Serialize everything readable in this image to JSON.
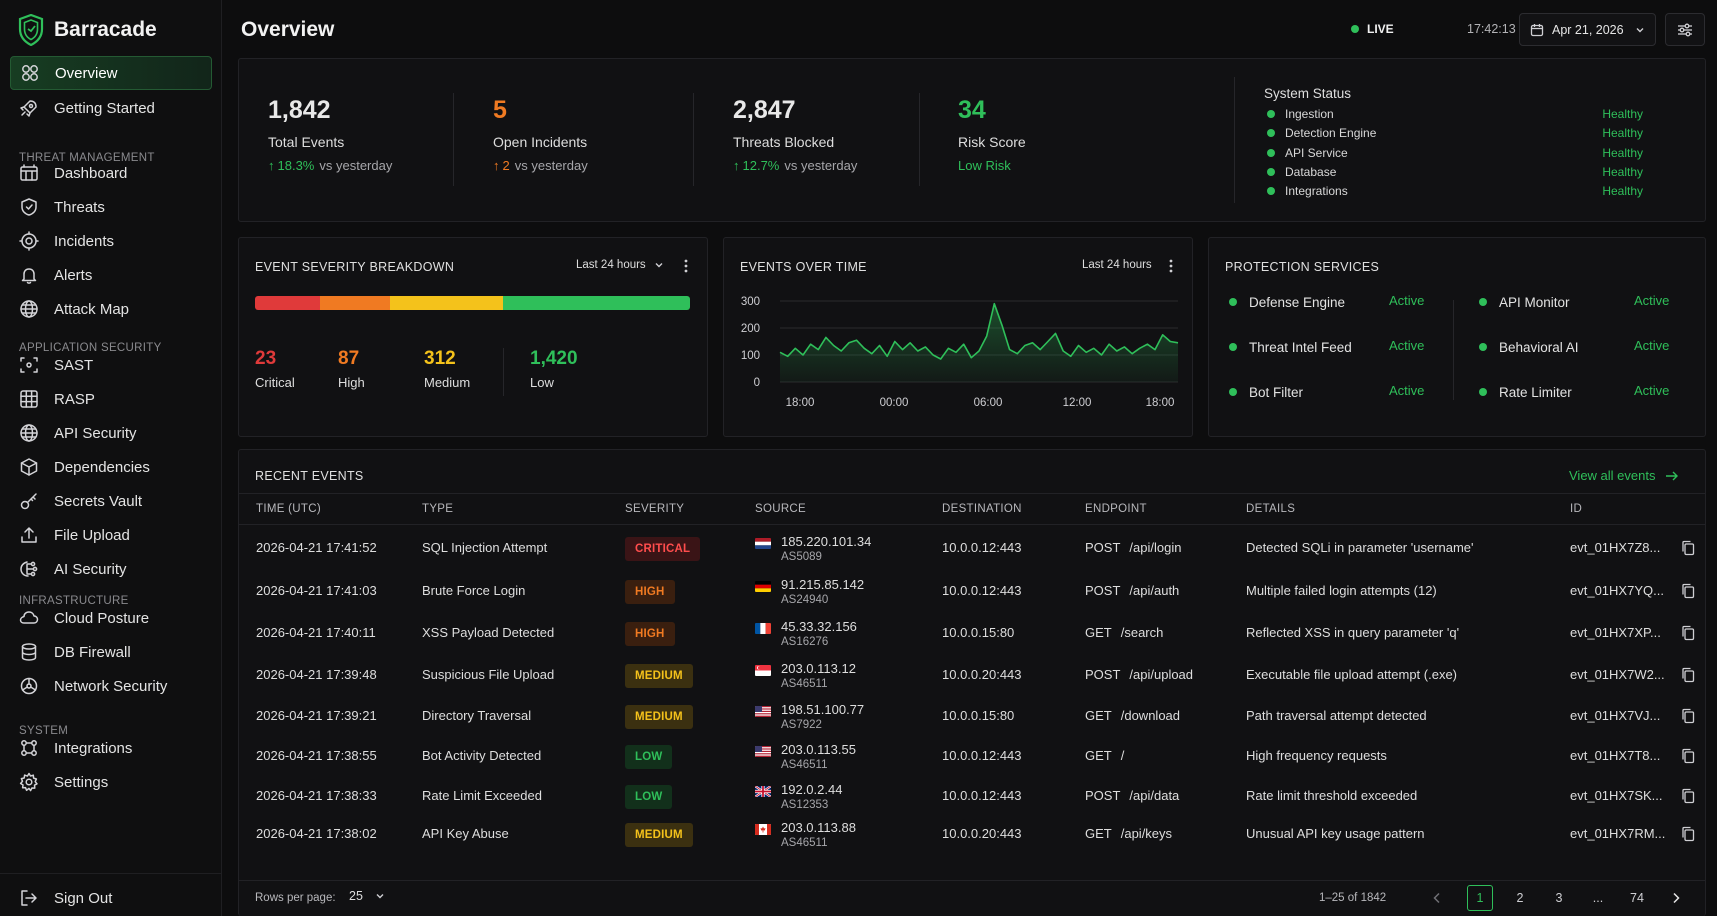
{
  "app": {
    "name": "Barracade"
  },
  "colors": {
    "accent": "#2fbf5a",
    "critical": "#e03a3a",
    "high": "#f07a22",
    "medium": "#f4c21b",
    "low": "#2fbf5a"
  },
  "sidebar": {
    "top": [
      {
        "label": "Overview",
        "icon": "grid-icon",
        "active": true
      },
      {
        "label": "Getting Started",
        "icon": "rocket-icon"
      }
    ],
    "sections": [
      {
        "label": "THREAT MANAGEMENT",
        "items": [
          {
            "label": "Dashboard",
            "icon": "dashboard-icon"
          },
          {
            "label": "Threats",
            "icon": "shield-icon"
          },
          {
            "label": "Incidents",
            "icon": "incident-icon"
          },
          {
            "label": "Alerts",
            "icon": "bell-icon"
          },
          {
            "label": "Attack Map",
            "icon": "globe-icon"
          }
        ]
      },
      {
        "label": "APPLICATION SECURITY",
        "items": [
          {
            "label": "SAST",
            "icon": "scan-icon"
          },
          {
            "label": "RASP",
            "icon": "grid-box-icon"
          },
          {
            "label": "API Security",
            "icon": "globe-icon"
          },
          {
            "label": "Dependencies",
            "icon": "package-icon"
          },
          {
            "label": "Secrets Vault",
            "icon": "key-icon"
          },
          {
            "label": "File Upload",
            "icon": "upload-icon"
          },
          {
            "label": "AI Security",
            "icon": "ai-icon"
          }
        ]
      },
      {
        "label": "INFRASTRUCTURE",
        "items": [
          {
            "label": "Cloud Posture",
            "icon": "cloud-icon"
          },
          {
            "label": "DB Firewall",
            "icon": "database-icon"
          },
          {
            "label": "Network Security",
            "icon": "network-icon"
          }
        ]
      },
      {
        "label": "SYSTEM",
        "items": [
          {
            "label": "Integrations",
            "icon": "integrations-icon"
          },
          {
            "label": "Settings",
            "icon": "gear-icon"
          }
        ]
      }
    ],
    "sign_out": "Sign Out"
  },
  "header": {
    "title": "Overview",
    "live": "LIVE",
    "time": "17:42:13 UTC",
    "date": "Apr 21, 2026"
  },
  "kpis": [
    {
      "value": "1,842",
      "label": "Total Events",
      "delta_arrow": "↑",
      "delta": "18.3%",
      "suffix": "vs yesterday",
      "tone": "green",
      "value_color": "#e8e8e8"
    },
    {
      "value": "5",
      "label": "Open Incidents",
      "delta_arrow": "↑",
      "delta": "2",
      "suffix": "vs yesterday",
      "tone": "orange",
      "value_color": "#f07a22"
    },
    {
      "value": "2,847",
      "label": "Threats Blocked",
      "delta_arrow": "↑",
      "delta": "12.7%",
      "suffix": "vs yesterday",
      "tone": "green",
      "value_color": "#e8e8e8"
    },
    {
      "value": "34",
      "label": "Risk Score",
      "delta_arrow": "",
      "delta": "Low Risk",
      "suffix": "",
      "tone": "green",
      "value_color": "#2fbf5a"
    }
  ],
  "system_status": {
    "title": "System Status",
    "items": [
      {
        "name": "Ingestion",
        "status": "Healthy"
      },
      {
        "name": "Detection Engine",
        "status": "Healthy"
      },
      {
        "name": "API Service",
        "status": "Healthy"
      },
      {
        "name": "Database",
        "status": "Healthy"
      },
      {
        "name": "Integrations",
        "status": "Healthy"
      }
    ]
  },
  "severity": {
    "title": "EVENT SEVERITY BREAKDOWN",
    "range": "Last 24 hours",
    "bar_shares": [
      0.15,
      0.16,
      0.26,
      0.43
    ],
    "items": [
      {
        "value": "23",
        "label": "Critical",
        "color": "#e03a3a"
      },
      {
        "value": "87",
        "label": "High",
        "color": "#f07a22"
      },
      {
        "value": "312",
        "label": "Medium",
        "color": "#f4c21b"
      },
      {
        "value": "1,420",
        "label": "Low",
        "color": "#2fbf5a"
      }
    ]
  },
  "events_over_time": {
    "title": "EVENTS OVER TIME",
    "range": "Last 24 hours",
    "chart_data": {
      "type": "area",
      "x_ticks": [
        "18:00",
        "00:00",
        "06:00",
        "12:00",
        "18:00"
      ],
      "y_ticks": [
        0,
        100,
        200,
        300
      ],
      "ylim": [
        0,
        300
      ],
      "values": [
        110,
        95,
        125,
        100,
        140,
        120,
        165,
        135,
        115,
        145,
        155,
        125,
        105,
        135,
        95,
        150,
        120,
        145,
        115,
        130,
        100,
        85,
        125,
        110,
        140,
        90,
        115,
        170,
        290,
        210,
        120,
        105,
        135,
        145,
        120,
        150,
        180,
        115,
        95,
        135,
        110,
        125,
        100,
        140,
        115,
        130,
        105,
        125,
        140,
        120,
        175,
        150,
        145
      ]
    }
  },
  "protection": {
    "title": "PROTECTION SERVICES",
    "left": [
      {
        "name": "Defense Engine",
        "status": "Active"
      },
      {
        "name": "Threat Intel Feed",
        "status": "Active"
      },
      {
        "name": "Bot Filter",
        "status": "Active"
      }
    ],
    "right": [
      {
        "name": "API Monitor",
        "status": "Active"
      },
      {
        "name": "Behavioral AI",
        "status": "Active"
      },
      {
        "name": "Rate Limiter",
        "status": "Active"
      }
    ]
  },
  "recent_events": {
    "title": "RECENT EVENTS",
    "view_all": "View all events",
    "columns": [
      "TIME (UTC)",
      "TYPE",
      "SEVERITY",
      "SOURCE",
      "DESTINATION",
      "ENDPOINT",
      "DETAILS",
      "ID"
    ],
    "rows": [
      {
        "time": "2026-04-21 17:41:52",
        "type": "SQL Injection Attempt",
        "severity": "CRITICAL",
        "flag": "nl",
        "ip": "185.220.101.34",
        "as": "AS5089",
        "dest": "10.0.0.12:443",
        "method": "POST",
        "path": "/api/login",
        "details": "Detected SQLi in parameter 'username'",
        "id": "evt_01HX7Z8..."
      },
      {
        "time": "2026-04-21 17:41:03",
        "type": "Brute Force Login",
        "severity": "HIGH",
        "flag": "de",
        "ip": "91.215.85.142",
        "as": "AS24940",
        "dest": "10.0.0.12:443",
        "method": "POST",
        "path": "/api/auth",
        "details": "Multiple failed login attempts (12)",
        "id": "evt_01HX7YQ..."
      },
      {
        "time": "2026-04-21 17:40:11",
        "type": "XSS Payload Detected",
        "severity": "HIGH",
        "flag": "fr",
        "ip": "45.33.32.156",
        "as": "AS16276",
        "dest": "10.0.0.15:80",
        "method": "GET",
        "path": "/search",
        "details": "Reflected XSS in query parameter 'q'",
        "id": "evt_01HX7XP..."
      },
      {
        "time": "2026-04-21 17:39:48",
        "type": "Suspicious File Upload",
        "severity": "MEDIUM",
        "flag": "sg",
        "ip": "203.0.113.12",
        "as": "AS46511",
        "dest": "10.0.0.20:443",
        "method": "POST",
        "path": "/api/upload",
        "details": "Executable file upload attempt (.exe)",
        "id": "evt_01HX7W2..."
      },
      {
        "time": "2026-04-21 17:39:21",
        "type": "Directory Traversal",
        "severity": "MEDIUM",
        "flag": "us",
        "ip": "198.51.100.77",
        "as": "AS7922",
        "dest": "10.0.0.15:80",
        "method": "GET",
        "path": "/download",
        "details": "Path traversal attempt detected",
        "id": "evt_01HX7VJ..."
      },
      {
        "time": "2026-04-21 17:38:55",
        "type": "Bot Activity Detected",
        "severity": "LOW",
        "flag": "us",
        "ip": "203.0.113.55",
        "as": "AS46511",
        "dest": "10.0.0.12:443",
        "method": "GET",
        "path": "/",
        "details": "High frequency requests",
        "id": "evt_01HX7T8..."
      },
      {
        "time": "2026-04-21 17:38:33",
        "type": "Rate Limit Exceeded",
        "severity": "LOW",
        "flag": "gb",
        "ip": "192.0.2.44",
        "as": "AS12353",
        "dest": "10.0.0.12:443",
        "method": "POST",
        "path": "/api/data",
        "details": "Rate limit threshold exceeded",
        "id": "evt_01HX7SK..."
      },
      {
        "time": "2026-04-21 17:38:02",
        "type": "API Key Abuse",
        "severity": "MEDIUM",
        "flag": "ca",
        "ip": "203.0.113.88",
        "as": "AS46511",
        "dest": "10.0.0.20:443",
        "method": "GET",
        "path": "/api/keys",
        "details": "Unusual API key usage pattern",
        "id": "evt_01HX7RM..."
      }
    ],
    "footer": {
      "rows_per_page_label": "Rows per page:",
      "rows_per_page": "25",
      "range_text": "1–25 of 1842",
      "pages": [
        "1",
        "2",
        "3",
        "...",
        "74"
      ],
      "current_page": "1"
    }
  }
}
